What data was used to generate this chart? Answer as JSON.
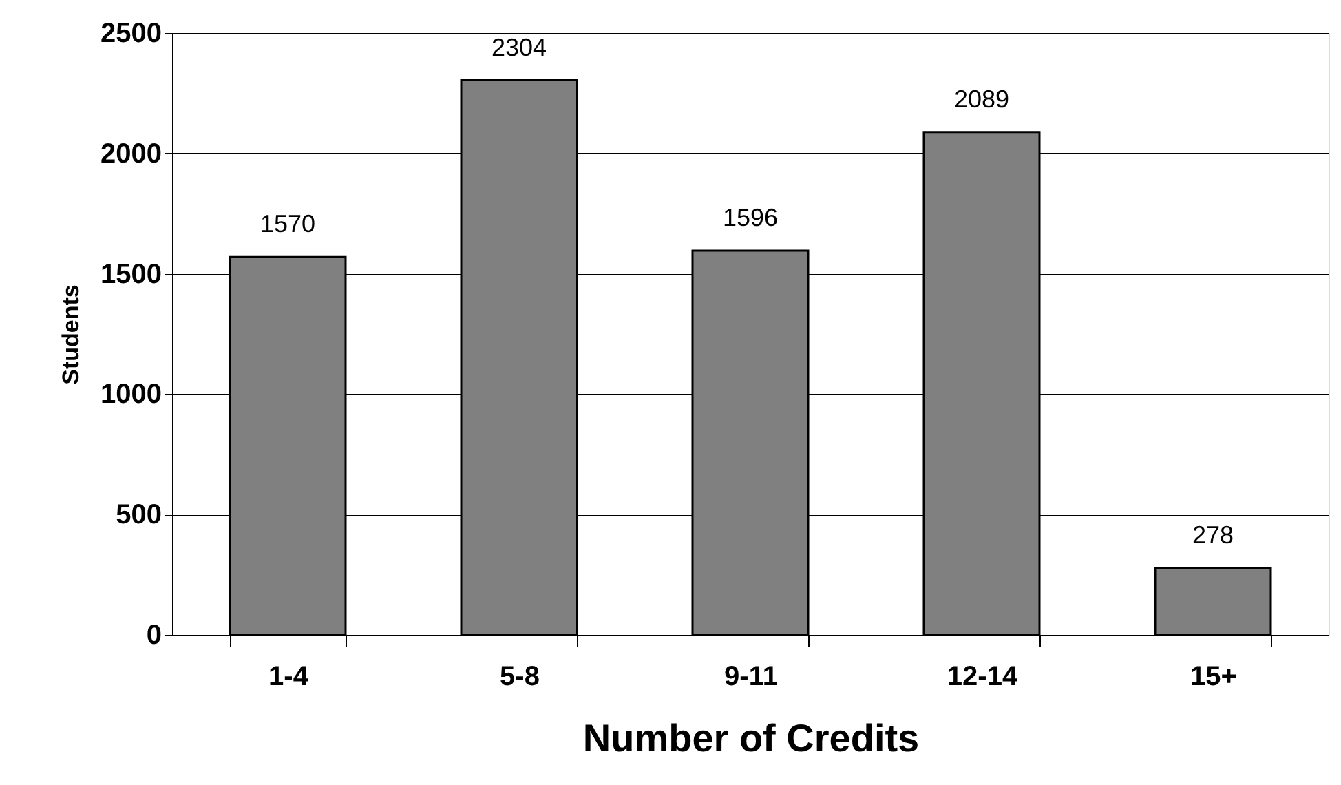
{
  "chart_data": {
    "type": "bar",
    "xlabel": "Number of Credits",
    "ylabel": "Students",
    "categories": [
      "1-4",
      "5-8",
      "9-11",
      "12-14",
      "15+"
    ],
    "values": [
      1570,
      2304,
      1596,
      2089,
      278
    ],
    "color": "#808080",
    "ylim": [
      0,
      2500
    ],
    "yticks": [
      0,
      500,
      1000,
      1500,
      2000,
      2500
    ],
    "grid": "y",
    "data_labels": true
  }
}
